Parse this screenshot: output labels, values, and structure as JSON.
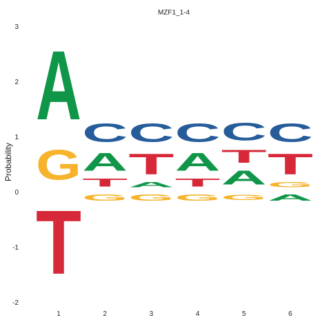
{
  "chart_data": {
    "type": "sequence-logo",
    "title": "MZF1_1-4",
    "xlabel": "",
    "ylabel": "Probability",
    "ylim": [
      -2,
      3
    ],
    "yticks": [
      "-2",
      "-1",
      "0",
      "1",
      "2",
      "3"
    ],
    "grid": false,
    "legend": "none",
    "colors": {
      "A": "#109648",
      "C": "#255C99",
      "G": "#F7B32B",
      "T": "#D62839"
    },
    "positions": [
      {
        "label": "1",
        "stack": [
          {
            "letter": "T",
            "from": -1.85,
            "to": 0.0
          },
          {
            "letter": "G",
            "from": 0.05,
            "to": 0.92
          },
          {
            "letter": "A",
            "from": 0.92,
            "to": 2.92
          }
        ]
      },
      {
        "label": "2",
        "stack": [
          {
            "letter": "G",
            "from": -0.2,
            "to": -0.02
          },
          {
            "letter": "T",
            "from": 0.05,
            "to": 0.28
          },
          {
            "letter": "A",
            "from": 0.28,
            "to": 0.8
          },
          {
            "letter": "C",
            "from": 0.8,
            "to": 1.33
          }
        ]
      },
      {
        "label": "3",
        "stack": [
          {
            "letter": "G",
            "from": -0.2,
            "to": -0.02
          },
          {
            "letter": "A",
            "from": 0.05,
            "to": 0.2
          },
          {
            "letter": "T",
            "from": 0.2,
            "to": 0.8
          },
          {
            "letter": "C",
            "from": 0.8,
            "to": 1.33
          }
        ]
      },
      {
        "label": "4",
        "stack": [
          {
            "letter": "G",
            "from": -0.2,
            "to": -0.02
          },
          {
            "letter": "T",
            "from": 0.05,
            "to": 0.28
          },
          {
            "letter": "A",
            "from": 0.28,
            "to": 0.8
          },
          {
            "letter": "C",
            "from": 0.8,
            "to": 1.33
          }
        ]
      },
      {
        "label": "5",
        "stack": [
          {
            "letter": "G",
            "from": -0.18,
            "to": -0.02
          },
          {
            "letter": "A",
            "from": 0.05,
            "to": 0.45
          },
          {
            "letter": "T",
            "from": 0.45,
            "to": 0.83
          },
          {
            "letter": "C",
            "from": 0.83,
            "to": 1.33
          }
        ]
      },
      {
        "label": "6",
        "stack": [
          {
            "letter": "A",
            "from": -0.2,
            "to": -0.02
          },
          {
            "letter": "G",
            "from": 0.05,
            "to": 0.2
          },
          {
            "letter": "T",
            "from": 0.2,
            "to": 0.8
          },
          {
            "letter": "C",
            "from": 0.8,
            "to": 1.33
          }
        ]
      }
    ]
  }
}
